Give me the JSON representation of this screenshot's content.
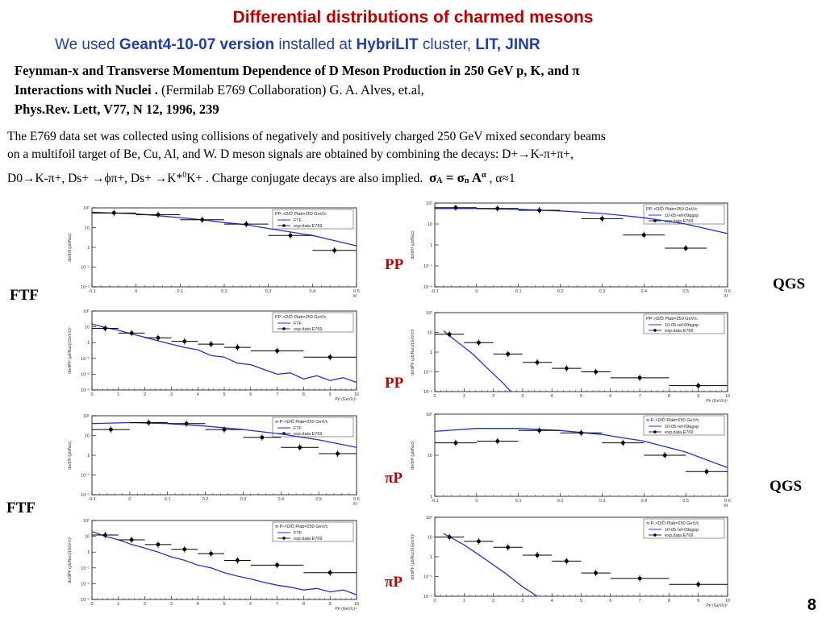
{
  "title": "Differential distributions of charmed mesons",
  "subtitle": {
    "pre": "We used ",
    "version": "Geant4-10-07 version",
    "mid": " installed at ",
    "cluster": "HybriLIT",
    "post": " cluster, ",
    "org": "LIT, JINR"
  },
  "reference": {
    "line1": "Feynman-x and Transverse Momentum Dependence of D Meson Production in 250 GeV p, K, and π",
    "line2_bold": "Interactions with Nuclei .",
    "line2_rest": " (Fermilab E769 Collaboration) G. A. Alves, et.al,",
    "line3": "Phys.Rev. Lett, V77, N 12, 1996, 239"
  },
  "description": {
    "line1": "The E769 data set was collected using collisions of negatively and positively charged 250 GeV mixed secondary beams",
    "line2": "on a multifoil target of Be, Cu, Al, and W. D meson signals are obtained by combining the decays: D+→K-π+π+,",
    "line3": "D0→K-π+, Ds+ →ϕπ+, Ds+ →K*",
    "line3_sup": "0",
    "line3_b": "K+  .  Charge conjugate decays are also implied.",
    "sigmaA": "σ",
    "subA": "A",
    "eq": " = ",
    "sigman": "σ",
    "subn": "n",
    "A": " A",
    "alpha_sup": "α",
    "tail": " , α≈1"
  },
  "labels": {
    "ftf_top": "FTF",
    "ftf_bottom": "FTF",
    "qgs_top": "QGS",
    "qgs_bottom": "QGS",
    "pp1": "PP",
    "pp2": "PP",
    "pip1": "πP",
    "pip2": "πP"
  },
  "page_number": "8",
  "colors": {
    "title": "#c00000",
    "subtitle": "#1f3ea8",
    "model": "#2233cc",
    "data": "#000000"
  },
  "chart_data": [
    {
      "id": "ftf_pp_xf",
      "type": "scatter",
      "xscale": "linear",
      "yscale": "log",
      "xlim": [
        -0.1,
        0.5
      ],
      "ylim": [
        0.01,
        100
      ],
      "ylabel": "dσ/dXf (μb/Nuc)",
      "xlabel": "Xf",
      "xticks": [
        "-0.1",
        "0",
        "0.1",
        "0.2",
        "0.3",
        "0.4",
        "0.5"
      ],
      "yticks": [
        "10⁻²",
        "10⁻¹",
        "1",
        "10",
        "10²"
      ],
      "legend": [
        "PP->D/D̄ Plab=250 GeV/c",
        "FTF",
        "exp.data E769"
      ],
      "model": {
        "name": "FTF",
        "x": [
          -0.1,
          0.0,
          0.05,
          0.1,
          0.15,
          0.2,
          0.25,
          0.3,
          0.35,
          0.4,
          0.45,
          0.5
        ],
        "y": [
          60,
          50,
          40,
          32,
          25,
          18,
          14,
          9,
          6,
          4,
          2.2,
          1.2
        ]
      },
      "data": {
        "x": [
          -0.05,
          0.05,
          0.15,
          0.25,
          0.35,
          0.45
        ],
        "y": [
          55,
          45,
          25,
          15,
          4,
          0.7
        ],
        "xerr": 0.05
      }
    },
    {
      "id": "qgs_pp_xf",
      "type": "scatter",
      "xscale": "linear",
      "yscale": "log",
      "xlim": [
        -0.1,
        0.6
      ],
      "ylim": [
        0.01,
        100
      ],
      "ylabel": "dσ/dXf (μb/Nuc)",
      "xlabel": "Xf",
      "xticks": [
        "-0.1",
        "0",
        "0.1",
        "0.2",
        "0.3",
        "0.4",
        "0.5",
        "0.6"
      ],
      "yticks": [
        "10⁻²",
        "10⁻¹",
        "1",
        "10",
        "10²"
      ],
      "legend": [
        "PP->D/D̄ Plab=250 GeV/c",
        "10-05-ref-09qgsp",
        "exp.data E769"
      ],
      "model": {
        "name": "QGS",
        "x": [
          -0.1,
          0.0,
          0.1,
          0.2,
          0.3,
          0.4,
          0.5,
          0.6
        ],
        "y": [
          55,
          55,
          50,
          42,
          32,
          20,
          10,
          3.5
        ]
      },
      "data": {
        "x": [
          -0.05,
          0.05,
          0.15,
          0.3,
          0.4,
          0.5
        ],
        "y": [
          60,
          55,
          45,
          18,
          3,
          0.7
        ],
        "xerr": 0.05
      }
    },
    {
      "id": "ftf_pp_pt",
      "type": "scatter",
      "xscale": "linear",
      "yscale": "log",
      "xlim": [
        0,
        10
      ],
      "ylim": [
        0.001,
        100
      ],
      "ylabel": "dσ/dPt² (μb/Nuc)/(GeV/c)²",
      "xlabel": "Pt² (GeV/c)²",
      "xticks": [
        "0",
        "1",
        "2",
        "3",
        "4",
        "5",
        "6",
        "7",
        "8",
        "9",
        "10"
      ],
      "yticks": [
        "10⁻³",
        "10⁻²",
        "10⁻¹",
        "1",
        "10",
        "10²"
      ],
      "legend": [
        "PP->D/D̄ Plab=250 GeV/c",
        "FTF",
        "exp.data E769"
      ],
      "model": {
        "name": "FTF",
        "x": [
          0,
          0.5,
          1,
          1.5,
          2,
          2.5,
          3,
          3.5,
          4,
          4.5,
          5,
          5.5,
          6,
          6.5,
          7,
          7.5,
          8,
          8.5,
          9,
          9.5,
          10
        ],
        "y": [
          15,
          9,
          6,
          3.5,
          2.2,
          1.3,
          0.8,
          0.5,
          0.35,
          0.15,
          0.12,
          0.05,
          0.04,
          0.02,
          0.01,
          0.012,
          0.005,
          0.008,
          0.004,
          0.006,
          0.003
        ]
      },
      "data": {
        "x": [
          0.5,
          1.5,
          2.5,
          3.5,
          4.5,
          5.5,
          7.0,
          9.0
        ],
        "y": [
          8,
          4,
          2,
          1.2,
          0.8,
          0.5,
          0.3,
          0.12
        ],
        "xerr": [
          0.5,
          0.5,
          0.5,
          0.5,
          0.5,
          0.5,
          1.0,
          1.0
        ]
      }
    },
    {
      "id": "qgs_pp_pt",
      "type": "scatter",
      "xscale": "linear",
      "yscale": "log",
      "xlim": [
        0,
        10
      ],
      "ylim": [
        0.01,
        100
      ],
      "ylabel": "dσ/dPt² (μb/Nuc)/(GeV/c)²",
      "xlabel": "Pt² (GeV/c)²",
      "xticks": [
        "0",
        "1",
        "2",
        "3",
        "4",
        "5",
        "6",
        "7",
        "8",
        "9",
        "10"
      ],
      "yticks": [
        "10⁻²",
        "10⁻¹",
        "1",
        "10",
        "10²"
      ],
      "legend": [
        "PP->D/D̄ Plab=250 GeV/c",
        "10-05-ref-09qgsp",
        "exp.data E769"
      ],
      "model": {
        "name": "QGS",
        "x": [
          0.3,
          0.8,
          1.3,
          1.8,
          2.3,
          2.6
        ],
        "y": [
          12,
          3,
          0.8,
          0.15,
          0.03,
          0.01
        ]
      },
      "data": {
        "x": [
          0.5,
          1.5,
          2.5,
          3.5,
          4.5,
          5.5,
          7.0,
          9.0
        ],
        "y": [
          8,
          3,
          0.8,
          0.3,
          0.15,
          0.1,
          0.05,
          0.02
        ],
        "xerr": [
          0.5,
          0.5,
          0.5,
          0.5,
          0.5,
          0.5,
          1.0,
          1.0
        ]
      }
    },
    {
      "id": "ftf_pip_xf",
      "type": "scatter",
      "xscale": "linear",
      "yscale": "log",
      "xlim": [
        -0.1,
        0.6
      ],
      "ylim": [
        0.01,
        100
      ],
      "ylabel": "dσ/dXf (μb/Nuc)",
      "xlabel": "Xf",
      "xticks": [
        "-0.1",
        "0",
        "0.1",
        "0.2",
        "0.3",
        "0.4",
        "0.5",
        "0.6"
      ],
      "yticks": [
        "10⁻²",
        "10⁻¹",
        "1",
        "10",
        "10²"
      ],
      "legend": [
        "π-P->D/D̄ Plab=250 GeV/c",
        "FTF",
        "exp.data E769"
      ],
      "model": {
        "name": "FTF",
        "x": [
          -0.1,
          0.0,
          0.1,
          0.2,
          0.3,
          0.4,
          0.5,
          0.6
        ],
        "y": [
          40,
          45,
          40,
          30,
          20,
          12,
          6,
          2.5
        ]
      },
      "data": {
        "x": [
          -0.05,
          0.05,
          0.15,
          0.25,
          0.35,
          0.45,
          0.55
        ],
        "y": [
          20,
          45,
          40,
          20,
          8,
          2.5,
          1.2
        ],
        "xerr": 0.05
      }
    },
    {
      "id": "qgs_pip_xf",
      "type": "scatter",
      "xscale": "linear",
      "yscale": "log",
      "xlim": [
        -0.1,
        0.6
      ],
      "ylim": [
        1,
        100
      ],
      "ylabel": "dσ/dXf (μb/Nuc)",
      "xlabel": "Xf",
      "xticks": [
        "-0.1",
        "0",
        "0.1",
        "0.2",
        "0.3",
        "0.4",
        "0.5",
        "0.6"
      ],
      "yticks": [
        "1",
        "10",
        "10²"
      ],
      "legend": [
        "π-P->D/D̄ Plab=250 GeV/c",
        "10-05-ref-09qgsp",
        "exp.data E769"
      ],
      "model": {
        "name": "QGS",
        "x": [
          -0.1,
          0.0,
          0.1,
          0.2,
          0.3,
          0.4,
          0.5,
          0.6
        ],
        "y": [
          38,
          45,
          45,
          40,
          32,
          22,
          12,
          5
        ]
      },
      "data": {
        "x": [
          -0.05,
          0.05,
          0.15,
          0.25,
          0.35,
          0.45,
          0.55
        ],
        "y": [
          20,
          22,
          40,
          35,
          20,
          10,
          4
        ],
        "xerr": 0.05
      }
    },
    {
      "id": "ftf_pip_pt",
      "type": "scatter",
      "xscale": "linear",
      "yscale": "log",
      "xlim": [
        0,
        10
      ],
      "ylim": [
        0.001,
        100
      ],
      "ylabel": "dσ/dPt² (μb/Nuc)/(GeV/c)²",
      "xlabel": "Pt² (GeV/c)²",
      "xticks": [
        "0",
        "1",
        "2",
        "3",
        "4",
        "5",
        "6",
        "7",
        "8",
        "9",
        "10"
      ],
      "yticks": [
        "10⁻³",
        "10⁻²",
        "10⁻¹",
        "1",
        "10",
        "10²"
      ],
      "legend": [
        "π-P->D/D̄ Plab=250 GeV/c",
        "FTF",
        "exp.data E769"
      ],
      "model": {
        "name": "FTF",
        "x": [
          0,
          0.5,
          1,
          1.5,
          2,
          2.5,
          3,
          3.5,
          4,
          4.5,
          5,
          5.5,
          6,
          6.5,
          7,
          7.5,
          8,
          8.5,
          9,
          9.5,
          10
        ],
        "y": [
          20,
          10,
          6,
          3,
          1.8,
          1.0,
          0.5,
          0.3,
          0.15,
          0.1,
          0.05,
          0.03,
          0.02,
          0.012,
          0.008,
          0.006,
          0.004,
          0.005,
          0.003,
          0.004,
          0.002
        ]
      },
      "data": {
        "x": [
          0.5,
          1.5,
          2.5,
          3.5,
          4.5,
          5.5,
          7.0,
          9.0
        ],
        "y": [
          12,
          6,
          3,
          1.5,
          0.8,
          0.3,
          0.15,
          0.05
        ],
        "xerr": [
          0.5,
          0.5,
          0.5,
          0.5,
          0.5,
          0.5,
          1.0,
          1.0
        ]
      }
    },
    {
      "id": "qgs_pip_pt",
      "type": "scatter",
      "xscale": "linear",
      "yscale": "log",
      "xlim": [
        0,
        10
      ],
      "ylim": [
        0.01,
        100
      ],
      "ylabel": "dσ/dPt² (μb/Nuc)/(GeV/c)²",
      "xlabel": "Pt² (GeV/c)²",
      "xticks": [
        "0",
        "1",
        "2",
        "3",
        "4",
        "5",
        "6",
        "7",
        "8",
        "9",
        "10"
      ],
      "yticks": [
        "10⁻²",
        "10⁻¹",
        "1",
        "10",
        "10²"
      ],
      "legend": [
        "π-P->D/D̄ Plab=250 GeV/c",
        "10-05-ref-09qgsp",
        "exp.data E769"
      ],
      "model": {
        "name": "QGS",
        "x": [
          0.3,
          1.0,
          1.7,
          2.4,
          3.0,
          3.5
        ],
        "y": [
          15,
          4,
          0.8,
          0.15,
          0.03,
          0.01
        ]
      },
      "data": {
        "x": [
          0.5,
          1.5,
          2.5,
          3.5,
          4.5,
          5.5,
          7.0,
          9.0
        ],
        "y": [
          10,
          6,
          3,
          1.2,
          0.6,
          0.15,
          0.08,
          0.04
        ],
        "xerr": [
          0.5,
          0.5,
          0.5,
          0.5,
          0.5,
          0.5,
          1.0,
          1.0
        ]
      }
    }
  ]
}
